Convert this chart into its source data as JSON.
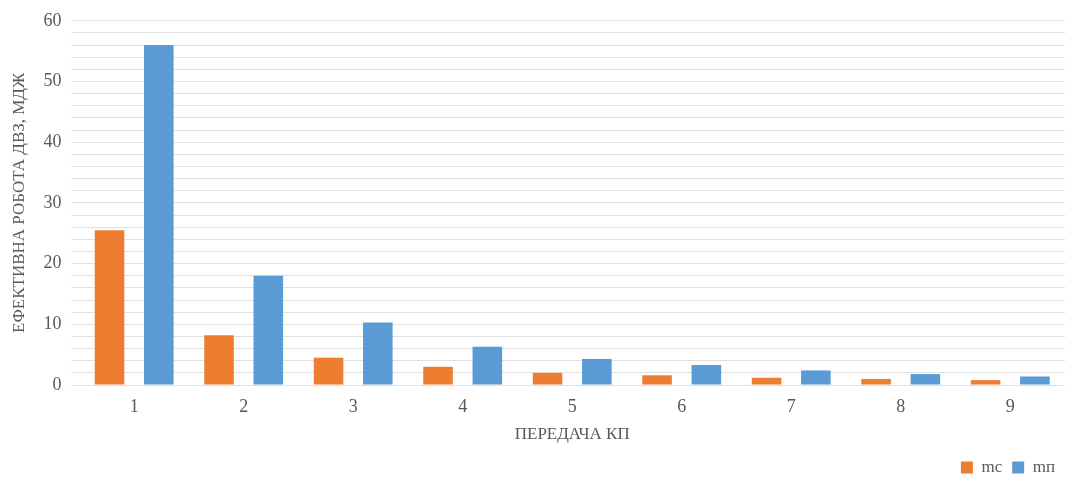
{
  "chart_data": {
    "type": "bar",
    "xlabel": "ПЕРЕДАЧА КП",
    "ylabel": "ЕФЕКТИВНА РОБОТА ДВЗ, МДЖ",
    "categories": [
      "1",
      "2",
      "3",
      "4",
      "5",
      "6",
      "7",
      "8",
      "9"
    ],
    "series": [
      {
        "name": "mc",
        "color": "#ed7d31",
        "values": [
          25.5,
          8.2,
          4.5,
          3,
          2,
          1.6,
          1.2,
          1,
          0.8
        ]
      },
      {
        "name": "mп",
        "color": "#5b9bd5",
        "values": [
          56,
          18,
          10.3,
          6.3,
          4.3,
          3.3,
          2.4,
          1.8,
          1.4
        ]
      }
    ],
    "ylim": [
      0,
      60
    ],
    "yticks": [
      0,
      {
        "value": 2,
        "label": null
      },
      {
        "value": 4,
        "label": null
      },
      {
        "value": 6,
        "label": null
      },
      {
        "value": 8,
        "label": null
      },
      10,
      {
        "value": 12,
        "label": null
      },
      {
        "value": 14,
        "label": null
      },
      {
        "value": 16,
        "label": null
      },
      {
        "value": 18,
        "label": null
      },
      20,
      {
        "value": 22,
        "label": null
      },
      {
        "value": 24,
        "label": null
      },
      {
        "value": 26,
        "label": null
      },
      {
        "value": 28,
        "label": null
      },
      30,
      {
        "value": 32,
        "label": null
      },
      {
        "value": 34,
        "label": null
      },
      {
        "value": 36,
        "label": null
      },
      {
        "value": 38,
        "label": null
      },
      40,
      {
        "value": 42,
        "label": null
      },
      {
        "value": 44,
        "label": null
      },
      {
        "value": 46,
        "label": null
      },
      {
        "value": 48,
        "label": null
      },
      50,
      {
        "value": 52,
        "label": null
      },
      {
        "value": 54,
        "label": null
      },
      {
        "value": 56,
        "label": null
      },
      {
        "value": 58,
        "label": null
      },
      60
    ],
    "grid": "y",
    "legend": "bottom right"
  }
}
